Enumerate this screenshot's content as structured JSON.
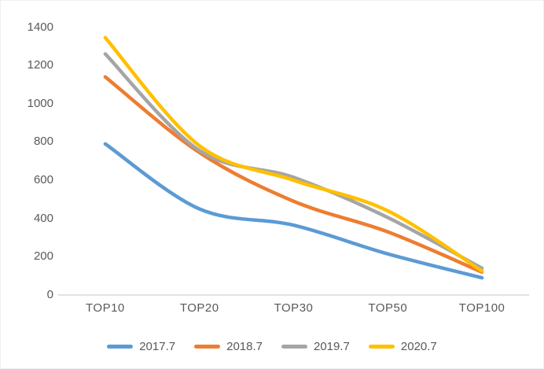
{
  "chart_data": {
    "type": "line",
    "title": "",
    "xlabel": "",
    "ylabel": "",
    "categories": [
      "TOP10",
      "TOP20",
      "TOP30",
      "TOP50",
      "TOP100"
    ],
    "series": [
      {
        "name": "2017.7",
        "color": "#5B9BD5",
        "values": [
          790,
          450,
          365,
          215,
          90
        ]
      },
      {
        "name": "2018.7",
        "color": "#ED7D31",
        "values": [
          1140,
          745,
          490,
          330,
          120
        ]
      },
      {
        "name": "2019.7",
        "color": "#A5A5A5",
        "values": [
          1260,
          755,
          615,
          405,
          140
        ]
      },
      {
        "name": "2020.7",
        "color": "#FFC000",
        "values": [
          1345,
          780,
          600,
          440,
          125
        ]
      }
    ],
    "ylim": [
      0,
      1400
    ],
    "yticks": [
      0,
      200,
      400,
      600,
      800,
      1000,
      1200,
      1400
    ],
    "grid": false,
    "smooth": true,
    "legend_position": "bottom",
    "axis_color": "#D9D9D9",
    "text_color": "#595959",
    "line_width": 4.5
  }
}
